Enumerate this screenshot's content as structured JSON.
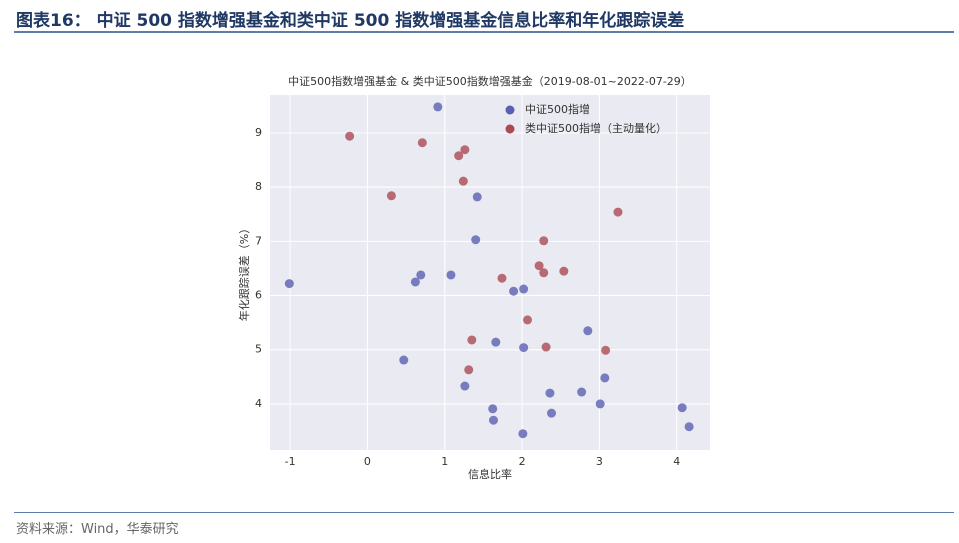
{
  "header": {
    "title": "图表16： 中证 500 指数增强基金和类中证 500 指数增强基金信息比率和年化跟踪误差"
  },
  "chart_data": {
    "type": "scatter",
    "title": "中证500指数增强基金 & 类中证500指数增强基金（2019-08-01~2022-07-29）",
    "x_label": "信息比率",
    "y_label": "年化跟踪误差（%）",
    "xlim": [
      -1.26,
      4.43
    ],
    "ylim": [
      3.15,
      9.7
    ],
    "xticks": [
      -1,
      0,
      1,
      2,
      3,
      4
    ],
    "yticks": [
      4,
      5,
      6,
      7,
      8,
      9
    ],
    "grid": true,
    "legend": "upper center",
    "series": [
      {
        "name": "中证500指增",
        "color": "#5a60b0",
        "x": [
          -1.01,
          0.91,
          1.42,
          1.4,
          0.62,
          0.69,
          1.08,
          0.47,
          1.26,
          1.66,
          1.89,
          2.02,
          2.02,
          2.85,
          3.07,
          2.77,
          2.36,
          2.38,
          3.01,
          1.62,
          1.63,
          2.01,
          4.07,
          4.16
        ],
        "values": [
          6.22,
          9.48,
          7.82,
          7.03,
          6.25,
          6.38,
          6.38,
          4.81,
          4.33,
          5.14,
          6.08,
          6.12,
          5.04,
          5.35,
          4.48,
          4.22,
          4.2,
          3.83,
          4.0,
          3.91,
          3.7,
          3.45,
          3.93,
          3.58
        ]
      },
      {
        "name": "类中证500指增（主动量化）",
        "color": "#ab4a54",
        "x": [
          -0.23,
          0.71,
          1.26,
          1.18,
          1.24,
          0.31,
          3.24,
          2.28,
          2.22,
          2.28,
          2.54,
          1.74,
          2.07,
          1.35,
          2.31,
          3.08,
          1.31
        ],
        "values": [
          8.94,
          8.82,
          8.69,
          8.58,
          8.11,
          7.84,
          7.54,
          7.01,
          6.55,
          6.42,
          6.45,
          6.32,
          5.55,
          5.18,
          5.05,
          4.99,
          4.63
        ]
      }
    ]
  },
  "footer": {
    "source": "资料来源：Wind，华泰研究"
  }
}
